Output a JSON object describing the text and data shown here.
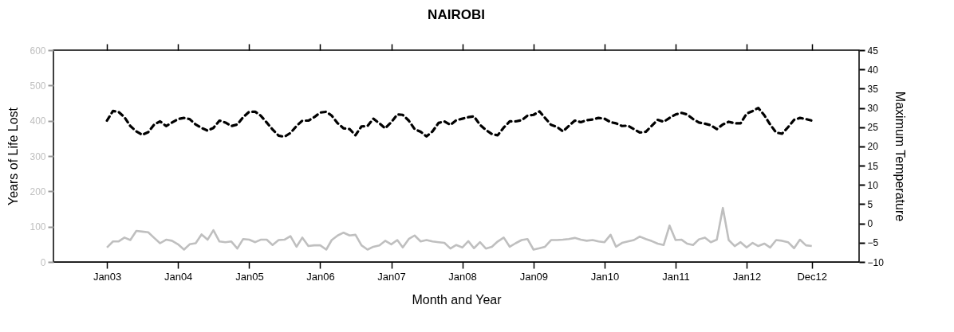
{
  "chart_data": {
    "type": "line",
    "title": "NAIROBI",
    "xlabel": "Month and Year",
    "ylabel": "Years of Life Lost",
    "y2label": "Maximum Temperature",
    "x": [
      "2003-01",
      "2003-02",
      "2003-03",
      "2003-04",
      "2003-05",
      "2003-06",
      "2003-07",
      "2003-08",
      "2003-09",
      "2003-10",
      "2003-11",
      "2003-12",
      "2004-01",
      "2004-02",
      "2004-03",
      "2004-04",
      "2004-05",
      "2004-06",
      "2004-07",
      "2004-08",
      "2004-09",
      "2004-10",
      "2004-11",
      "2004-12",
      "2005-01",
      "2005-02",
      "2005-03",
      "2005-04",
      "2005-05",
      "2005-06",
      "2005-07",
      "2005-08",
      "2005-09",
      "2005-10",
      "2005-11",
      "2005-12",
      "2006-01",
      "2006-02",
      "2006-03",
      "2006-04",
      "2006-05",
      "2006-06",
      "2006-07",
      "2006-08",
      "2006-09",
      "2006-10",
      "2006-11",
      "2006-12",
      "2007-01",
      "2007-02",
      "2007-03",
      "2007-04",
      "2007-05",
      "2007-06",
      "2007-07",
      "2007-08",
      "2007-09",
      "2007-10",
      "2007-11",
      "2007-12",
      "2008-01",
      "2008-02",
      "2008-03",
      "2008-04",
      "2008-05",
      "2008-06",
      "2008-07",
      "2008-08",
      "2008-09",
      "2008-10",
      "2008-11",
      "2008-12",
      "2009-01",
      "2009-02",
      "2009-03",
      "2009-04",
      "2009-05",
      "2009-06",
      "2009-07",
      "2009-08",
      "2009-09",
      "2009-10",
      "2009-11",
      "2009-12",
      "2010-01",
      "2010-02",
      "2010-03",
      "2010-04",
      "2010-05",
      "2010-06",
      "2010-07",
      "2010-08",
      "2010-09",
      "2010-10",
      "2010-11",
      "2010-12",
      "2011-01",
      "2011-02",
      "2011-03",
      "2011-04",
      "2011-05",
      "2011-06",
      "2011-07",
      "2011-08",
      "2011-09",
      "2011-10",
      "2011-11",
      "2011-12",
      "2012-01",
      "2012-02",
      "2012-03",
      "2012-04",
      "2012-05",
      "2012-06",
      "2012-07",
      "2012-08",
      "2012-09",
      "2012-10",
      "2012-11",
      "2012-12"
    ],
    "xlim": [
      "2002-04",
      "2013-08"
    ],
    "xticks": [
      {
        "value": "2003-01",
        "label": "Jan03"
      },
      {
        "value": "2004-01",
        "label": "Jan04"
      },
      {
        "value": "2005-01",
        "label": "Jan05"
      },
      {
        "value": "2006-01",
        "label": "Jan06"
      },
      {
        "value": "2007-01",
        "label": "Jan07"
      },
      {
        "value": "2008-01",
        "label": "Jan08"
      },
      {
        "value": "2009-01",
        "label": "Jan09"
      },
      {
        "value": "2010-01",
        "label": "Jan10"
      },
      {
        "value": "2011-01",
        "label": "Jan11"
      },
      {
        "value": "2012-01",
        "label": "Jan12"
      },
      {
        "value": "2012-12",
        "label": "Dec12"
      }
    ],
    "ylim": [
      0,
      600
    ],
    "yticks": [
      0,
      100,
      200,
      300,
      400,
      500,
      600
    ],
    "y2lim": [
      -10,
      45
    ],
    "y2ticks": [
      -10,
      -5,
      0,
      5,
      10,
      15,
      20,
      25,
      30,
      35,
      40,
      45
    ],
    "series": [
      {
        "color": "#bfbfbf",
        "line_style": "solid",
        "values": [
          41,
          58,
          58,
          69,
          62,
          88,
          86,
          84,
          68,
          53,
          63,
          60,
          50,
          35,
          50,
          53,
          78,
          63,
          90,
          58,
          56,
          58,
          38,
          65,
          63,
          56,
          63,
          63,
          48,
          62,
          63,
          73,
          43,
          69,
          45,
          47,
          47,
          35,
          62,
          75,
          83,
          75,
          77,
          47,
          35,
          43,
          47,
          60,
          50,
          62,
          41,
          65,
          75,
          58,
          62,
          58,
          56,
          54,
          38,
          48,
          41,
          59,
          39,
          56,
          38,
          43,
          58,
          69,
          43,
          53,
          62,
          65,
          35,
          39,
          43,
          62,
          62,
          63,
          65,
          68,
          63,
          60,
          62,
          58,
          56,
          77,
          43,
          54,
          58,
          62,
          72,
          65,
          59,
          52,
          48,
          103,
          62,
          63,
          52,
          48,
          64,
          69,
          56,
          63,
          153,
          62,
          45,
          56,
          41,
          54,
          45,
          52,
          41,
          62,
          60,
          56,
          39,
          63,
          47,
          45
        ]
      },
      {
        "color": "#000000",
        "line_style": "dashed",
        "axis": "y2",
        "values": [
          26.7,
          29.2,
          29,
          27.6,
          25.3,
          23.9,
          23,
          23.7,
          25.7,
          26.5,
          25.3,
          26.2,
          27.1,
          27.4,
          27.1,
          25.7,
          24.8,
          24.1,
          24.8,
          26.7,
          26.2,
          25.3,
          25.7,
          27.6,
          29,
          29,
          28,
          26.2,
          24.4,
          22.8,
          22.5,
          23.5,
          25.3,
          26.7,
          26.7,
          27.6,
          28.8,
          29,
          28,
          26,
          24.7,
          24.5,
          22.9,
          25.2,
          25.3,
          27.2,
          26,
          24.7,
          26.3,
          28.3,
          28.2,
          26.7,
          24.5,
          23.8,
          22.6,
          23.9,
          26.1,
          26.5,
          25.6,
          26.8,
          27.2,
          27.6,
          27.8,
          25.6,
          24.3,
          23.2,
          22.9,
          24.9,
          26.5,
          26.5,
          26.8,
          28,
          28.2,
          29.1,
          27.4,
          25.6,
          25.1,
          23.9,
          25.3,
          26.7,
          26.3,
          26.8,
          27,
          27.4,
          27.2,
          26.3,
          26,
          25.3,
          25.4,
          24.5,
          23.6,
          23.8,
          25.4,
          26.9,
          26.4,
          27.4,
          28.3,
          28.7,
          28.3,
          27.1,
          26.2,
          25.9,
          25.5,
          24.5,
          25.7,
          26.4,
          26,
          26,
          28.5,
          29.2,
          30,
          28.1,
          25.7,
          23.6,
          23.3,
          25,
          26.9,
          27.4,
          27.1,
          26.7
        ]
      }
    ]
  }
}
